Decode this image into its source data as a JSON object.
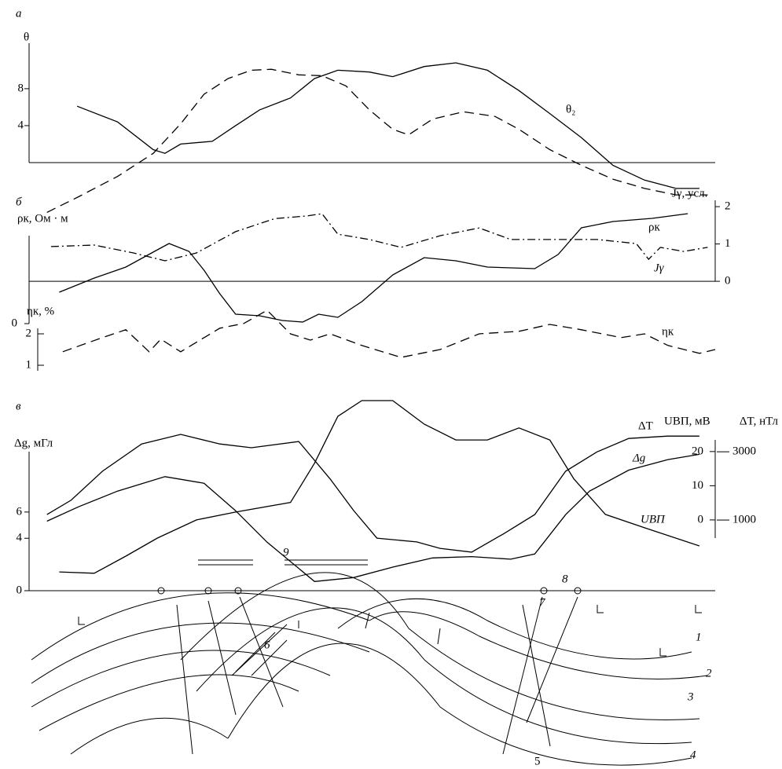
{
  "chart_data": [
    {
      "type": "line",
      "label": "а",
      "ylabel": "θ",
      "xlim": [
        0,
        100
      ],
      "ylim": [
        -6,
        12.5
      ],
      "yticks": [
        4,
        8
      ],
      "series": [
        {
          "name": "θ₂",
          "color": "#000",
          "dash": "solid",
          "x": [
            7.0,
            12.9,
            18.1,
            19.8,
            22.1,
            26.7,
            30.1,
            33.6,
            38.1,
            41.6,
            45.0,
            49.6,
            53.0,
            57.6,
            62.2,
            66.8,
            71.4,
            75.9,
            80.5,
            85.1,
            89.7,
            94.3,
            97.7
          ],
          "values": [
            6.1,
            4.4,
            1.4,
            1.0,
            2.0,
            2.3,
            4.0,
            5.7,
            7.0,
            9.1,
            10.0,
            9.8,
            9.3,
            10.4,
            10.8,
            10.0,
            7.8,
            5.3,
            2.7,
            -0.3,
            -1.9,
            -2.8,
            -2.8
          ]
        },
        {
          "color": "#000",
          "dash": "dashed",
          "x": [
            2.6,
            7.2,
            12.9,
            18.1,
            22.1,
            25.5,
            29.0,
            32.4,
            35.3,
            39.3,
            42.7,
            46.2,
            49.6,
            53.0,
            55.3,
            58.8,
            63.3,
            67.9,
            71.4,
            75.9,
            80.5,
            85.1,
            89.7,
            94.3,
            98.9
          ],
          "values": [
            -5.4,
            -3.7,
            -1.5,
            1.0,
            4.2,
            7.4,
            9.1,
            10.0,
            10.1,
            9.5,
            9.4,
            8.3,
            5.7,
            3.6,
            3.0,
            4.7,
            5.5,
            5.0,
            3.6,
            1.4,
            -0.3,
            -1.8,
            -2.8,
            -3.5,
            -3.5
          ]
        }
      ]
    },
    {
      "type": "line",
      "label": "б",
      "ylabel": "ρк, Ом · м",
      "y2label": "Jγ, усл.",
      "xlim": [
        0,
        100
      ],
      "ylim": [
        -3.15,
        7.85
      ],
      "yticks": [
        0
      ],
      "y2lim": [
        -2.46,
        2.17
      ],
      "y2ticks": [
        0,
        1,
        2
      ],
      "series": [
        {
          "name": "ρк",
          "color": "#000",
          "dash": "solid",
          "x": [
            4.4,
            9.5,
            14.1,
            18.7,
            20.4,
            23.3,
            25.5,
            27.8,
            30.1,
            33.6,
            36.9,
            39.9,
            42.2,
            45.0,
            48.5,
            53.0,
            57.6,
            62.2,
            66.8,
            73.7,
            77.1,
            80.5,
            85.1,
            90.8,
            96.0
          ],
          "values": [
            2.0,
            2.9,
            3.6,
            4.7,
            5.1,
            4.6,
            3.4,
            1.9,
            0.6,
            0.5,
            0.2,
            0.1,
            0.6,
            0.4,
            1.4,
            3.1,
            4.2,
            4.0,
            3.6,
            3.5,
            4.4,
            6.1,
            6.5,
            6.7,
            7.0
          ]
        },
        {
          "name": "Jγ",
          "color": "#000",
          "dash": "dashdot",
          "axis": "y2",
          "x": [
            3.2,
            9.5,
            15.2,
            19.8,
            24.4,
            30.1,
            35.8,
            40.4,
            42.7,
            45.0,
            49.6,
            54.2,
            59.9,
            65.6,
            70.2,
            75.9,
            82.8,
            88.5,
            90.3,
            92.0,
            95.4,
            98.9
          ],
          "values": [
            0.93,
            0.97,
            0.76,
            0.55,
            0.76,
            1.33,
            1.68,
            1.75,
            1.81,
            1.26,
            1.12,
            0.91,
            1.22,
            1.43,
            1.12,
            1.12,
            1.12,
            1.01,
            0.59,
            0.91,
            0.8,
            0.91
          ]
        }
      ]
    },
    {
      "type": "line",
      "ylabel": "ηк, %",
      "xlim": [
        0,
        100
      ],
      "ylim": [
        0.75,
        2.85
      ],
      "yticks": [
        1,
        2
      ],
      "series": [
        {
          "name": "ηк",
          "color": "#000",
          "dash": "dashed",
          "x": [
            4.9,
            10.7,
            14.1,
            17.5,
            19.2,
            22.1,
            27.8,
            31.3,
            34.7,
            38.1,
            41.0,
            43.9,
            48.5,
            54.2,
            59.9,
            65.6,
            71.4,
            75.9,
            80.5,
            86.3,
            89.7,
            93.1,
            97.7,
            100
          ],
          "values": [
            1.43,
            1.88,
            2.13,
            1.43,
            1.83,
            1.43,
            2.18,
            2.33,
            2.75,
            2.0,
            1.8,
            2.0,
            1.63,
            1.25,
            1.5,
            2.0,
            2.08,
            2.3,
            2.13,
            1.88,
            2.0,
            1.63,
            1.38,
            1.5
          ]
        }
      ]
    },
    {
      "type": "line",
      "label": "в",
      "ylabel": "Δg, мГл",
      "y2label": "UВП, мВ",
      "y3label": "ΔT, нТл",
      "xlim": [
        0,
        100
      ],
      "ylim": [
        0,
        15.1
      ],
      "yticks": [
        0,
        4,
        6
      ],
      "y2lim": [
        -20.7,
        37.2
      ],
      "y2ticks": [
        0,
        10,
        20
      ],
      "y3lim": [
        -1070,
        4730
      ],
      "y3ticks": [
        1000,
        3000
      ],
      "series": [
        {
          "name": "ΔT",
          "color": "#000",
          "dash": "solid",
          "axis": "y3",
          "x": [
            2.6,
            6.1,
            10.7,
            16.4,
            22.1,
            27.8,
            32.4,
            39.3,
            43.9,
            47.3,
            50.7,
            56.5,
            59.9,
            64.5,
            69.1,
            73.7,
            78.2,
            82.8,
            87.4,
            93.1,
            97.7
          ],
          "values": [
            1160,
            1580,
            2430,
            3230,
            3510,
            3230,
            3120,
            3300,
            2200,
            1280,
            470,
            360,
            170,
            60,
            590,
            1160,
            2430,
            3000,
            3390,
            3460,
            3460
          ]
        },
        {
          "name": "Δg",
          "color": "#000",
          "dash": "solid",
          "x": [
            2.6,
            7.2,
            12.9,
            19.8,
            25.5,
            30.1,
            34.7,
            41.6,
            47.3,
            53.0,
            58.8,
            64.5,
            70.2,
            73.7,
            78.2,
            81.7,
            87.4,
            93.1,
            97.7
          ],
          "values": [
            5.3,
            6.4,
            7.6,
            8.7,
            8.2,
            6.1,
            3.7,
            0.7,
            1.0,
            1.8,
            2.5,
            2.6,
            2.4,
            2.8,
            5.8,
            7.6,
            9.2,
            10.0,
            10.4
          ]
        },
        {
          "name": "UВП",
          "color": "#000",
          "dash": "solid",
          "axis": "y2",
          "x": [
            4.4,
            9.5,
            14.1,
            18.7,
            24.4,
            30.1,
            38.1,
            41.6,
            45.0,
            48.5,
            53.0,
            57.6,
            62.2,
            66.8,
            71.4,
            75.9,
            79.4,
            84.0,
            89.7,
            97.7
          ],
          "values": [
            -15.2,
            -15.6,
            -10.6,
            -5.3,
            0,
            2.3,
            5.1,
            16.6,
            30.3,
            34.9,
            34.9,
            28.0,
            23.4,
            23.4,
            26.9,
            23.4,
            12.0,
            1.6,
            -2.3,
            -7.6
          ]
        }
      ]
    }
  ],
  "section_labels": [
    "1",
    "2",
    "3",
    "4",
    "5",
    "6",
    "7",
    "8",
    "9"
  ]
}
